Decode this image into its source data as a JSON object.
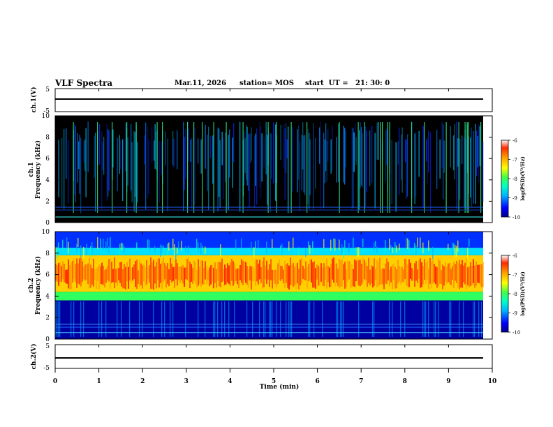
{
  "header": {
    "title": "VLF Spectra",
    "date": "Mar.11, 2026",
    "station": "station= MOS",
    "start_ut": "start  UT =   21: 30: 0"
  },
  "colors": {
    "background": "#000000",
    "colormap": [
      "#00008a",
      "#0000ff",
      "#00b4ff",
      "#00ffc8",
      "#44ff44",
      "#ffff00",
      "#ff9900",
      "#ff2a00",
      "#ffffff"
    ]
  },
  "chart_data": [
    {
      "type": "line",
      "ylabel": "ch.1(V)",
      "ylim": [
        -5,
        5
      ],
      "y_ticks": [
        "5",
        "-5"
      ],
      "series": [
        {
          "values_level": -0.5
        }
      ]
    },
    {
      "type": "heatmap",
      "ylabel_line1": "ch.1",
      "ylabel_line2": "Frequency (kHz)",
      "ylim": [
        0,
        10
      ],
      "y_ticks": [
        "0",
        "2",
        "4",
        "6",
        "8",
        "10"
      ],
      "xlim": [
        0,
        10
      ],
      "colorbar": {
        "label": "log(PSD)(V²/Hz)",
        "range": [
          -10,
          -6
        ],
        "ticks": [
          "-6",
          "-7",
          "-8",
          "-9",
          "-10"
        ]
      },
      "description_bands": {
        "dominant_kHz": [
          3,
          10
        ],
        "background_log_psd": -10,
        "peak_log_psd": -7.5
      }
    },
    {
      "type": "heatmap",
      "ylabel_line1": "ch.2",
      "ylabel_line2": "Frequency (kHz)",
      "ylim": [
        0,
        10
      ],
      "y_ticks": [
        "0",
        "2",
        "4",
        "6",
        "8",
        "10"
      ],
      "xlim": [
        0,
        10
      ],
      "colorbar": {
        "label": "log(PSD)(V²/Hz)",
        "range": [
          -10,
          -6
        ],
        "ticks": [
          "-6",
          "-7",
          "-8",
          "-9",
          "-10"
        ]
      },
      "description_bands": {
        "peak_kHz": [
          4,
          8
        ],
        "background_log_psd": -9.5,
        "peak_log_psd": -7.0
      }
    },
    {
      "type": "line",
      "ylabel": "ch.2(V)",
      "ylim": [
        -5,
        5
      ],
      "y_ticks": [
        "5",
        "-5"
      ],
      "series": [
        {
          "values_level": -1.0
        }
      ]
    }
  ],
  "x_axis": {
    "label": "Time (min)",
    "ticks": [
      "0",
      "1",
      "2",
      "3",
      "4",
      "5",
      "6",
      "7",
      "8",
      "9",
      "10"
    ]
  }
}
